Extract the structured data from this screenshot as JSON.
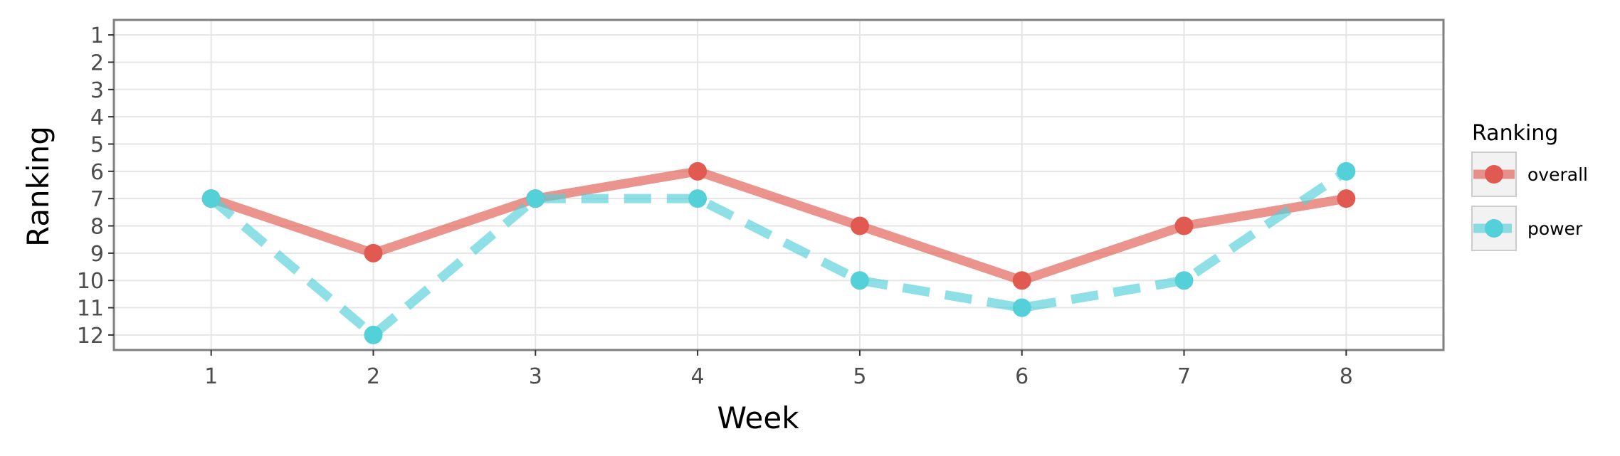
{
  "chart_data": {
    "type": "line",
    "xlabel": "Week",
    "ylabel": "Ranking",
    "x": [
      1,
      2,
      3,
      4,
      5,
      6,
      7,
      8
    ],
    "xlim": [
      0.4,
      8.6
    ],
    "ylim": [
      12.55,
      0.45
    ],
    "y_reversed": true,
    "yticks": [
      1,
      2,
      3,
      4,
      5,
      6,
      7,
      8,
      9,
      10,
      11,
      12
    ],
    "grid": true,
    "legend": {
      "title": "Ranking",
      "position": "right"
    },
    "series": [
      {
        "name": "overall",
        "values": [
          7,
          9,
          7,
          6,
          8,
          10,
          8,
          7
        ],
        "color": "#e05a52",
        "line_style": "solid"
      },
      {
        "name": "power",
        "values": [
          7,
          12,
          7,
          7,
          10,
          11,
          10,
          6
        ],
        "color": "#53d0d8",
        "line_style": "dashed"
      }
    ]
  }
}
